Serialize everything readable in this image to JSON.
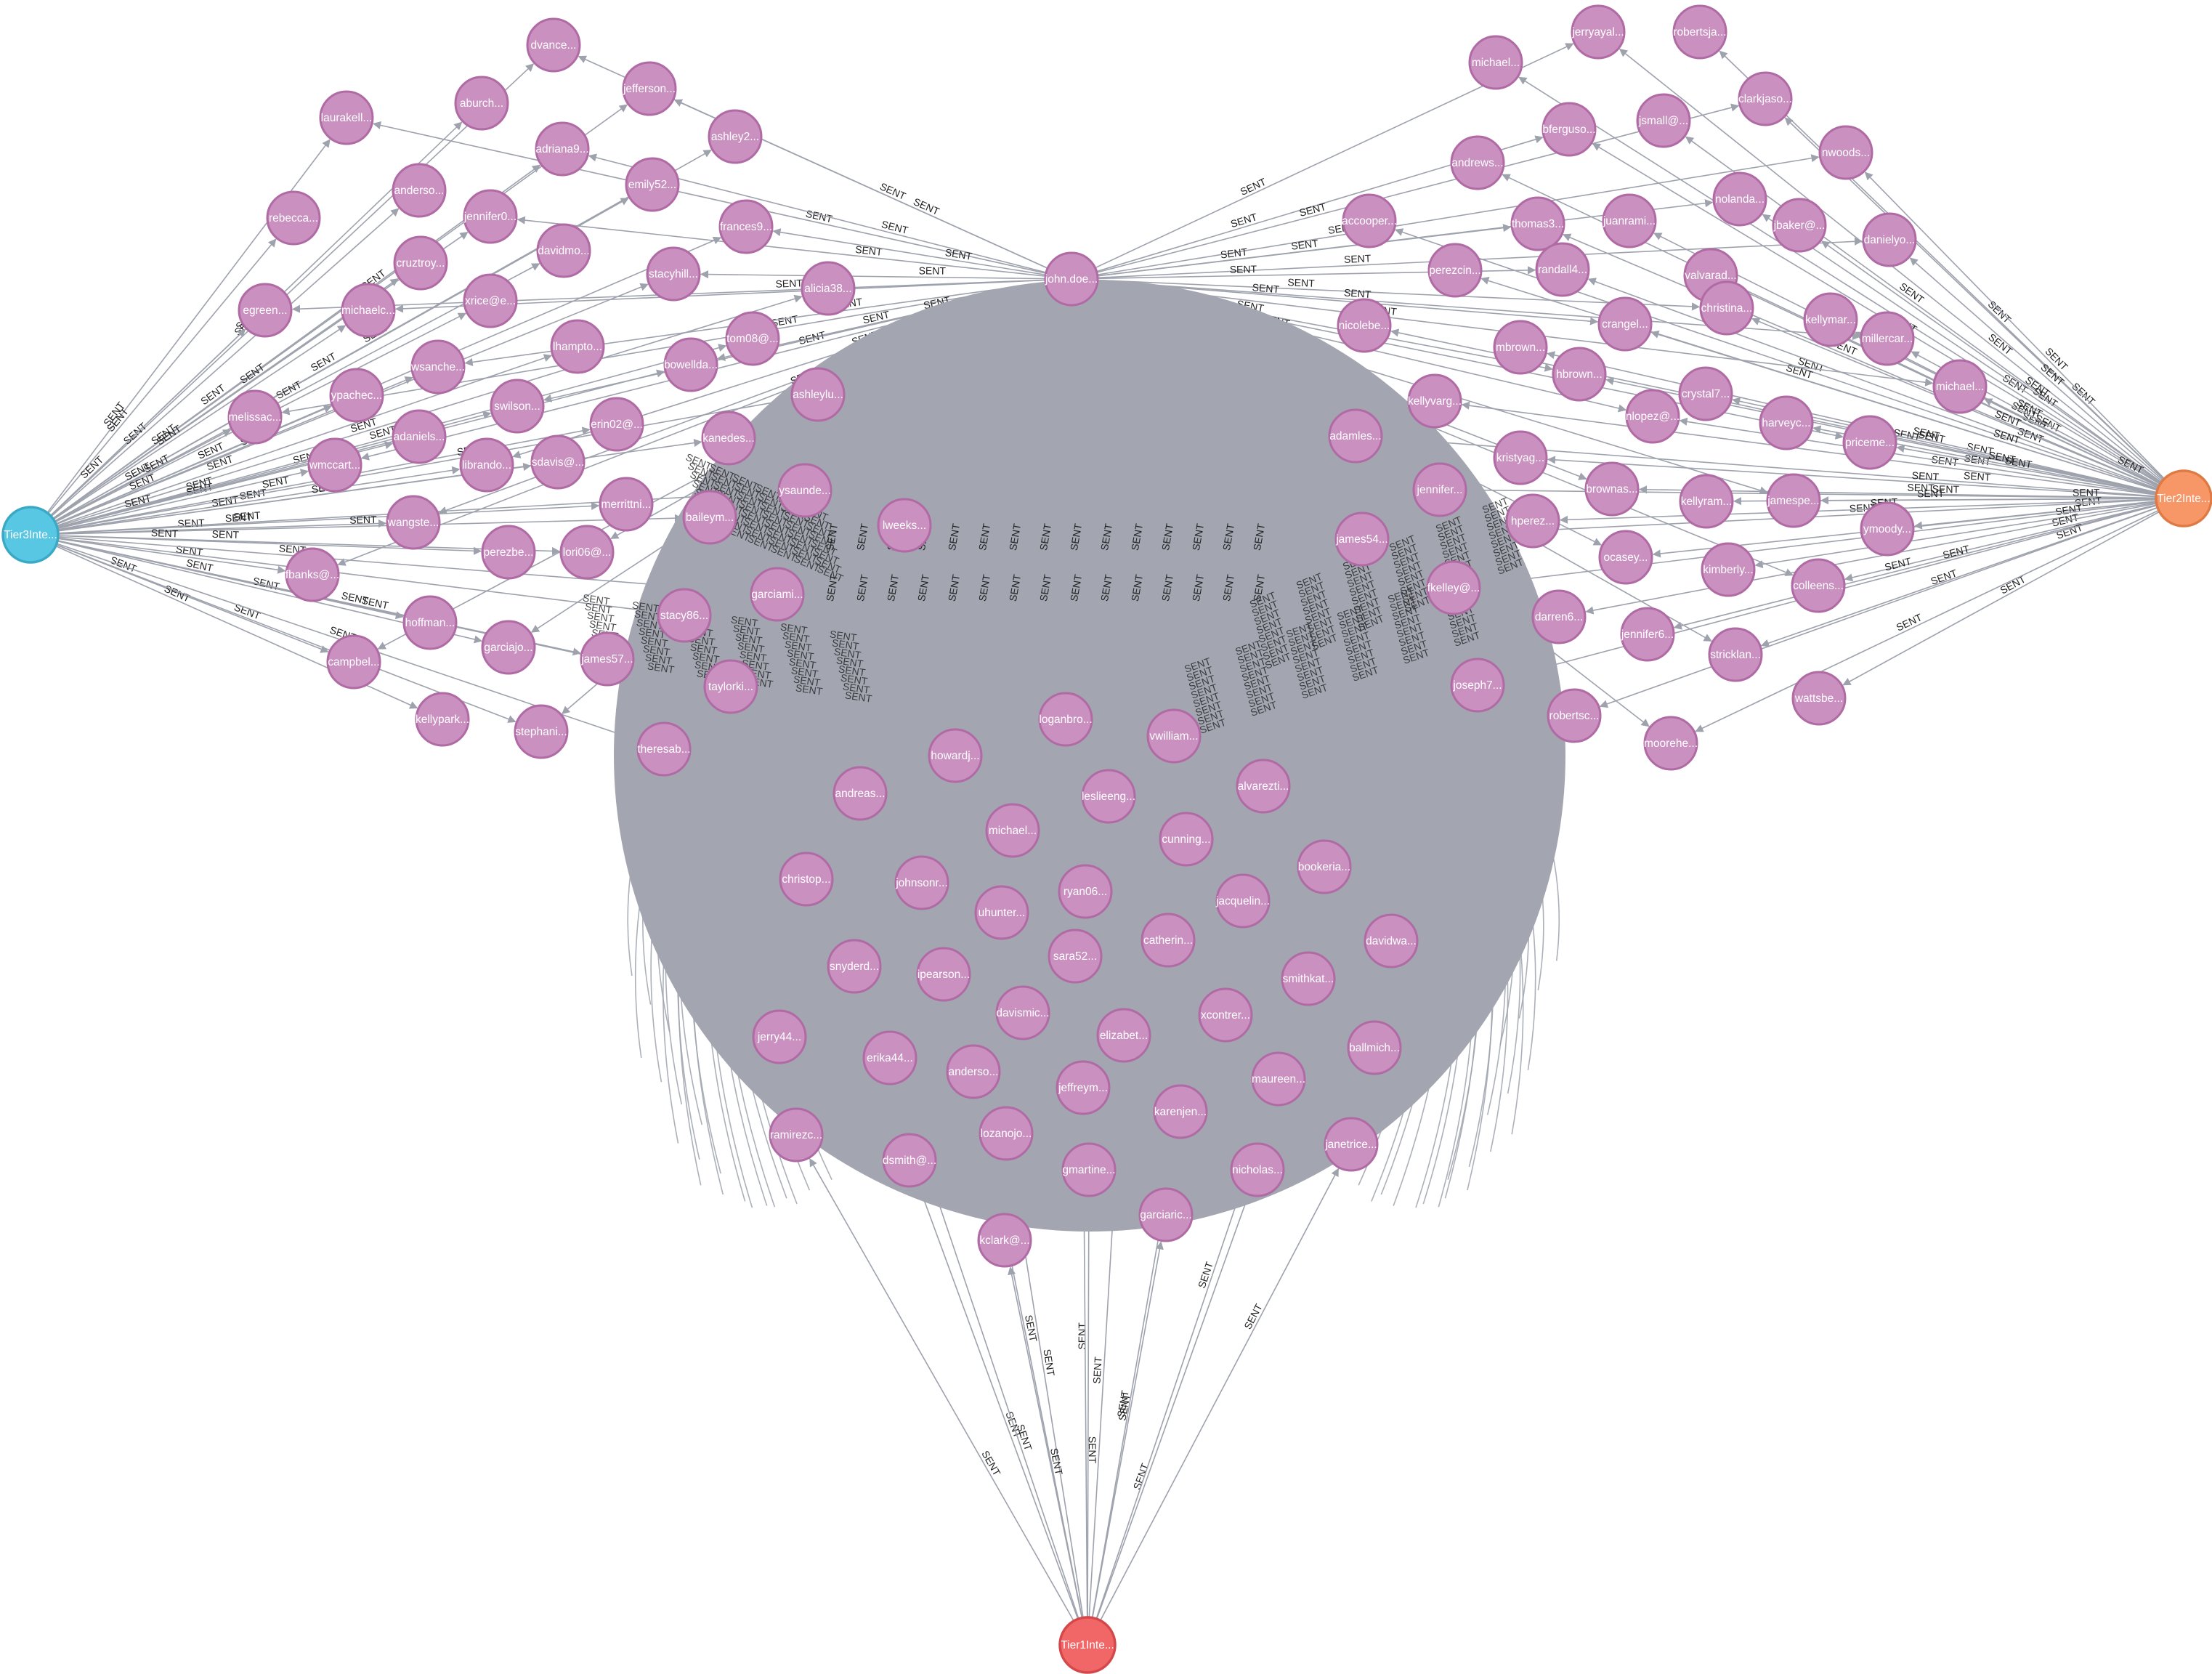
{
  "graph": {
    "edge_label": "SENT",
    "colors": {
      "user_node": "#c990c0",
      "user_border": "#b06aa4",
      "tier3": "#57c7e3",
      "tier2": "#f79767",
      "tier1": "#f16667",
      "edge": "#9ea2ad",
      "blob": "#a3a6b1"
    },
    "hubs": [
      {
        "id": "tier3",
        "label": "Tier3Inte...",
        "color": "#57c7e3",
        "border": "#3aa9c6"
      },
      {
        "id": "tier2",
        "label": "Tier2Inte...",
        "color": "#f79767",
        "border": "#e07a45"
      },
      {
        "id": "tier1",
        "label": "Tier1Inte...",
        "color": "#f16667",
        "border": "#d4474a"
      }
    ],
    "center": {
      "label": "john.doe..."
    },
    "left_nodes": [
      "laurakell...",
      "rebecca...",
      "dvance...",
      "aburch...",
      "jefferson...",
      "anderso...",
      "adriana9...",
      "ashley2...",
      "jennifer0...",
      "emily52...",
      "egreen...",
      "cruztroy...",
      "michaelc...",
      "davidmo...",
      "frances9...",
      "xrice@e...",
      "stacyhill...",
      "alicia38...",
      "melissac...",
      "ypachec...",
      "wsanche...",
      "lhampto...",
      "bowellda...",
      "tom08@...",
      "wmccart...",
      "adaniels...",
      "swilson...",
      "erin02@...",
      "librando...",
      "sdavis@...",
      "kanedes...",
      "merrittni...",
      "wangste...",
      "baileym...",
      "fbanks@...",
      "perezbe...",
      "lori06@...",
      "hoffman...",
      "garciajo...",
      "james57...",
      "campbel...",
      "kellypark...",
      "stephani...",
      "theresab...",
      "ashleylu...",
      "ysaunde...",
      "garciami...",
      "stacy86...",
      "taylorki..."
    ],
    "right_nodes": [
      "michael...",
      "jerryayal...",
      "robertsja...",
      "bferguso...",
      "jsmall@...",
      "clarkjaso...",
      "andrews...",
      "nwoods...",
      "accooper...",
      "thomas3...",
      "juanrami...",
      "nolanda...",
      "jbaker@...",
      "danielyo...",
      "perezcin...",
      "randall4...",
      "valvarad...",
      "christina...",
      "kellymar...",
      "millercar...",
      "nicolebe...",
      "crangel...",
      "mbrown...",
      "hbrown...",
      "crystal7...",
      "michael...",
      "kellyvarg...",
      "nlopez@...",
      "harveyc...",
      "priceme...",
      "adamles...",
      "jennifer...",
      "kristyag...",
      "brownas...",
      "kellyram...",
      "jamespe...",
      "ymoody...",
      "james54...",
      "hperez...",
      "ocasey...",
      "kimberly...",
      "colleens...",
      "fkelley@...",
      "darren6...",
      "jennifer6...",
      "stricklan...",
      "joseph7...",
      "robertsc...",
      "wattsbe...",
      "moorehe..."
    ],
    "bottom_nodes": [
      "lweeks...",
      "loganbro...",
      "vwilliam...",
      "howardj...",
      "andreas...",
      "leslieeng...",
      "alvarezti...",
      "michael...",
      "cunning...",
      "bookeria...",
      "christop...",
      "johnsonr...",
      "ryan06...",
      "jacquelin...",
      "uhunter...",
      "davidwa...",
      "catherin...",
      "snyderd...",
      "ipearson...",
      "sara52...",
      "smithkat...",
      "jerry44...",
      "davismic...",
      "xcontrer...",
      "elizabet...",
      "ballmich...",
      "erika44...",
      "anderso...",
      "maureen...",
      "jeffreym...",
      "karenjen...",
      "ramirezc...",
      "dsmith@...",
      "lozanojo...",
      "janetrice...",
      "gmartine...",
      "nicholas...",
      "kclark@...",
      "garciaric..."
    ]
  }
}
